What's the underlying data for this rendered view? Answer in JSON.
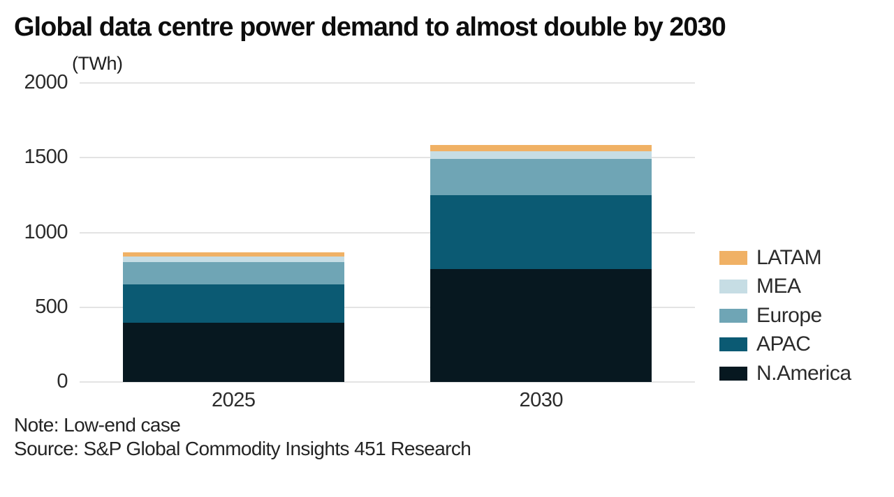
{
  "chart": {
    "title": "Global data centre power demand to almost double by 2030",
    "unit_label": "(TWh)",
    "note": "Note: Low-end case",
    "source": "Source: S&P Global Commodity Insights 451 Research"
  },
  "chart_data": {
    "type": "bar",
    "stacked": true,
    "title": "Global data centre power demand to almost double by 2030",
    "ylabel": "(TWh)",
    "xlabel": "",
    "categories": [
      "2025",
      "2030"
    ],
    "series": [
      {
        "name": "N.America",
        "color": "#071820",
        "values": [
          395,
          755
        ]
      },
      {
        "name": "APAC",
        "color": "#0b5a73",
        "values": [
          260,
          495
        ]
      },
      {
        "name": "Europe",
        "color": "#6fa5b5",
        "values": [
          145,
          240
        ]
      },
      {
        "name": "MEA",
        "color": "#c6dde4",
        "values": [
          40,
          55
        ]
      },
      {
        "name": "LATAM",
        "color": "#f0b165",
        "values": [
          25,
          40
        ]
      }
    ],
    "totals": {
      "2025": 865,
      "2030": 1585
    },
    "ylim": [
      0,
      2000
    ],
    "yticks": [
      0,
      500,
      1000,
      1500,
      2000
    ],
    "grid": true,
    "legend_position": "right",
    "legend_order": [
      "LATAM",
      "MEA",
      "Europe",
      "APAC",
      "N.America"
    ]
  }
}
